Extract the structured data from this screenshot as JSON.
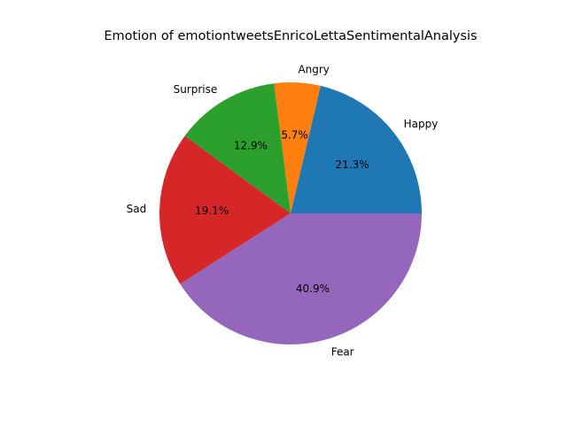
{
  "chart_data": {
    "type": "pie",
    "title": "Emotion of emotiontweetsEnricoLettaSentimentalAnalysis",
    "categories": [
      "Happy",
      "Angry",
      "Surprise",
      "Sad",
      "Fear"
    ],
    "values": [
      21.3,
      5.7,
      12.9,
      19.1,
      40.9
    ],
    "percent_labels": [
      "21.3%",
      "5.7%",
      "12.9%",
      "19.1%",
      "40.9%"
    ],
    "colors": [
      "#1f77b4",
      "#ff7f0e",
      "#2ca02c",
      "#d62728",
      "#9467bd"
    ],
    "start_angle_deg": 0,
    "direction": "counterclockwise"
  }
}
